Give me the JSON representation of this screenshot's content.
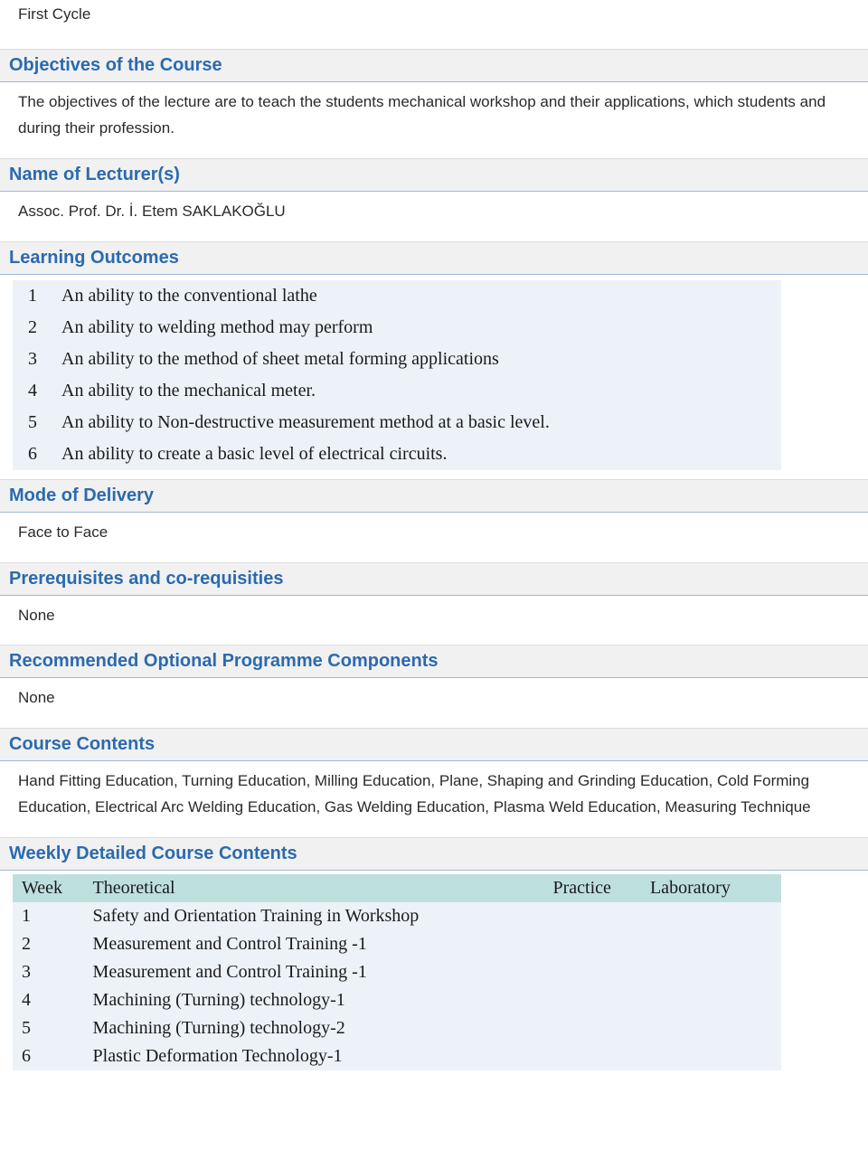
{
  "header_text": "First Cycle",
  "sections": {
    "objectives": {
      "title": "Objectives of the Course",
      "body": "The objectives of the lecture are to teach the students mechanical workshop and their applications, which students and during their profession."
    },
    "lecturers": {
      "title": "Name of Lecturer(s)",
      "body": "Assoc. Prof. Dr. İ. Etem SAKLAKOĞLU"
    },
    "learning_outcomes": {
      "title": "Learning Outcomes",
      "rows": [
        {
          "n": "1",
          "text": "An ability to the conventional lathe"
        },
        {
          "n": "2",
          "text": "An ability to welding method may perform"
        },
        {
          "n": "3",
          "text": "An ability to the method of sheet metal forming applications"
        },
        {
          "n": "4",
          "text": "An ability to  the mechanical meter."
        },
        {
          "n": "5",
          "text": "An ability to  Non-destructive measurement method at a basic level."
        },
        {
          "n": "6",
          "text": "An ability to  create a basic level of electrical circuits."
        }
      ]
    },
    "mode_of_delivery": {
      "title": "Mode of Delivery",
      "body": "Face to Face"
    },
    "prerequisites": {
      "title": "Prerequisites and co-requisities",
      "body": "None"
    },
    "recommended": {
      "title": "Recommended Optional Programme Components",
      "body": "None"
    },
    "course_contents": {
      "title": "Course Contents",
      "body": "Hand Fitting Education, Turning Education, Milling Education, Plane, Shaping and Grinding Education, Cold Forming Education, Electrical Arc Welding Education, Gas Welding Education, Plasma Weld Education, Measuring Technique"
    },
    "weekly": {
      "title": "Weekly Detailed Course Contents",
      "columns": {
        "week": "Week",
        "theoretical": "Theoretical",
        "practice": "Practice",
        "laboratory": "Laboratory"
      },
      "rows": [
        {
          "week": "1",
          "theoretical": "Safety and Orientation Training in Workshop",
          "practice": "",
          "laboratory": ""
        },
        {
          "week": "2",
          "theoretical": "Measurement and Control Training -1",
          "practice": "",
          "laboratory": ""
        },
        {
          "week": "3",
          "theoretical": "Measurement and Control Training -1",
          "practice": "",
          "laboratory": ""
        },
        {
          "week": "4",
          "theoretical": "Machining (Turning) technology-1",
          "practice": "",
          "laboratory": ""
        },
        {
          "week": "5",
          "theoretical": "Machining (Turning) technology-2",
          "practice": "",
          "laboratory": ""
        },
        {
          "week": "6",
          "theoretical": "Plastic Deformation Technology-1",
          "practice": "",
          "laboratory": ""
        }
      ]
    }
  },
  "colors": {
    "header_bg": "#f1f1f2",
    "header_border_top": "#dcdcdc",
    "header_border_bottom": "#9db8d6",
    "header_text": "#2b6aae",
    "outcomes_bg": "#edf2f8",
    "weekly_header_bg": "#bde0df"
  }
}
